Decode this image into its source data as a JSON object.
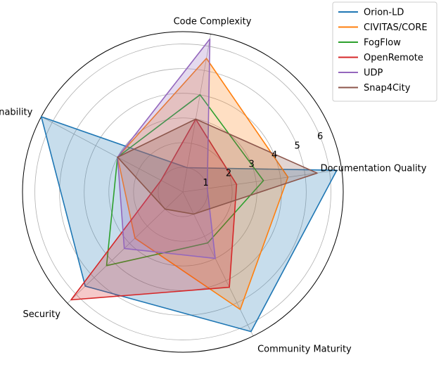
{
  "chart_data": {
    "type": "radar",
    "axes": [
      "Documentation Quality",
      "Code Complexity",
      "Maintainability",
      "Security",
      "Community Maturity"
    ],
    "rlim": [
      0,
      6.5
    ],
    "rticks": [
      1,
      2,
      3,
      4,
      5,
      6
    ],
    "grid": true,
    "legend_position": "top-right",
    "series": [
      {
        "name": "Orion-LD",
        "color": "#1f77b4",
        "values": [
          6.3,
          1.0,
          6.5,
          5.5,
          6.3
        ],
        "filled": true
      },
      {
        "name": "CIVITAS/CORE",
        "color": "#ff7f0e",
        "values": [
          4.3,
          5.5,
          3.0,
          2.7,
          5.3
        ],
        "filled": true
      },
      {
        "name": "FogFlow",
        "color": "#2ca02c",
        "values": [
          3.3,
          4.0,
          3.0,
          4.3,
          2.3
        ],
        "filled": false
      },
      {
        "name": "OpenRemote",
        "color": "#d62728",
        "values": [
          2.2,
          3.0,
          1.0,
          6.3,
          4.3
        ],
        "filled": true
      },
      {
        "name": "UDP",
        "color": "#9467bd",
        "values": [
          1.0,
          6.3,
          3.0,
          3.3,
          3.0
        ],
        "filled": true
      },
      {
        "name": "Snap4City",
        "color": "#8c564b",
        "values": [
          5.5,
          3.0,
          3.0,
          1.0,
          1.0
        ],
        "filled": true
      }
    ]
  }
}
